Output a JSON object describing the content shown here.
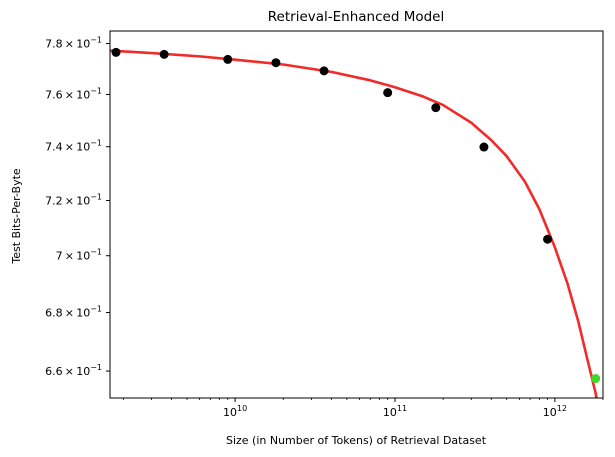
{
  "chart_data": {
    "type": "scatter",
    "title": "Retrieval-Enhanced Model",
    "xlabel": "Size (in Number of Tokens) of Retrieval Dataset",
    "ylabel": "Test Bits-Per-Byte",
    "x_scale": "log",
    "y_scale": "log",
    "xlim": [
      1650000000.0,
      2000000000000.0
    ],
    "ylim": [
      0.651,
      0.785
    ],
    "x_ticks": [
      {
        "value": 10000000000.0,
        "base": "10",
        "exp": "10"
      },
      {
        "value": 100000000000.0,
        "base": "10",
        "exp": "11"
      },
      {
        "value": 1000000000000.0,
        "base": "10",
        "exp": "12"
      }
    ],
    "y_ticks": [
      {
        "value": 0.78,
        "mant": "7.8",
        "exp": "−1"
      },
      {
        "value": 0.76,
        "mant": "7.6",
        "exp": "−1"
      },
      {
        "value": 0.74,
        "mant": "7.4",
        "exp": "−1"
      },
      {
        "value": 0.72,
        "mant": "7.2",
        "exp": "−1"
      },
      {
        "value": 0.7,
        "mant": "7",
        "exp": "−1"
      },
      {
        "value": 0.68,
        "mant": "6.8",
        "exp": "−1"
      },
      {
        "value": 0.66,
        "mant": "6.6",
        "exp": "−1"
      }
    ],
    "grid": false,
    "legend": "none",
    "series": [
      {
        "color": "#000000",
        "points": [
          {
            "x": 1800000000.0,
            "y": 0.7765
          },
          {
            "x": 3600000000.0,
            "y": 0.7757
          },
          {
            "x": 9000000000.0,
            "y": 0.7737
          },
          {
            "x": 18000000000.0,
            "y": 0.7724
          },
          {
            "x": 36000000000.0,
            "y": 0.7692
          },
          {
            "x": 90000000000.0,
            "y": 0.7607
          },
          {
            "x": 180000000000.0,
            "y": 0.7549
          },
          {
            "x": 360000000000.0,
            "y": 0.7399
          },
          {
            "x": 900000000000.0,
            "y": 0.7059
          }
        ]
      },
      {
        "color": "#3fd92b",
        "points": [
          {
            "x": 1800000000000.0,
            "y": 0.6575
          }
        ]
      }
    ],
    "fit_line": {
      "color": "#f22a2a",
      "points": [
        {
          "x": 1650000000.0,
          "y": 0.7772
        },
        {
          "x": 3000000000.0,
          "y": 0.7762
        },
        {
          "x": 6000000000.0,
          "y": 0.7749
        },
        {
          "x": 10000000000.0,
          "y": 0.7736
        },
        {
          "x": 20000000000.0,
          "y": 0.7717
        },
        {
          "x": 40000000000.0,
          "y": 0.7688
        },
        {
          "x": 70000000000.0,
          "y": 0.7655
        },
        {
          "x": 100000000000.0,
          "y": 0.7628
        },
        {
          "x": 150000000000.0,
          "y": 0.7592
        },
        {
          "x": 200000000000.0,
          "y": 0.7559
        },
        {
          "x": 300000000000.0,
          "y": 0.7491
        },
        {
          "x": 400000000000.0,
          "y": 0.7425
        },
        {
          "x": 500000000000.0,
          "y": 0.7364
        },
        {
          "x": 650000000000.0,
          "y": 0.7269
        },
        {
          "x": 800000000000.0,
          "y": 0.7168
        },
        {
          "x": 1000000000000.0,
          "y": 0.703
        },
        {
          "x": 1200000000000.0,
          "y": 0.6901
        },
        {
          "x": 1400000000000.0,
          "y": 0.677
        },
        {
          "x": 1600000000000.0,
          "y": 0.6638
        },
        {
          "x": 1800000000000.0,
          "y": 0.6525
        },
        {
          "x": 1820000000000.0,
          "y": 0.651
        }
      ]
    }
  }
}
